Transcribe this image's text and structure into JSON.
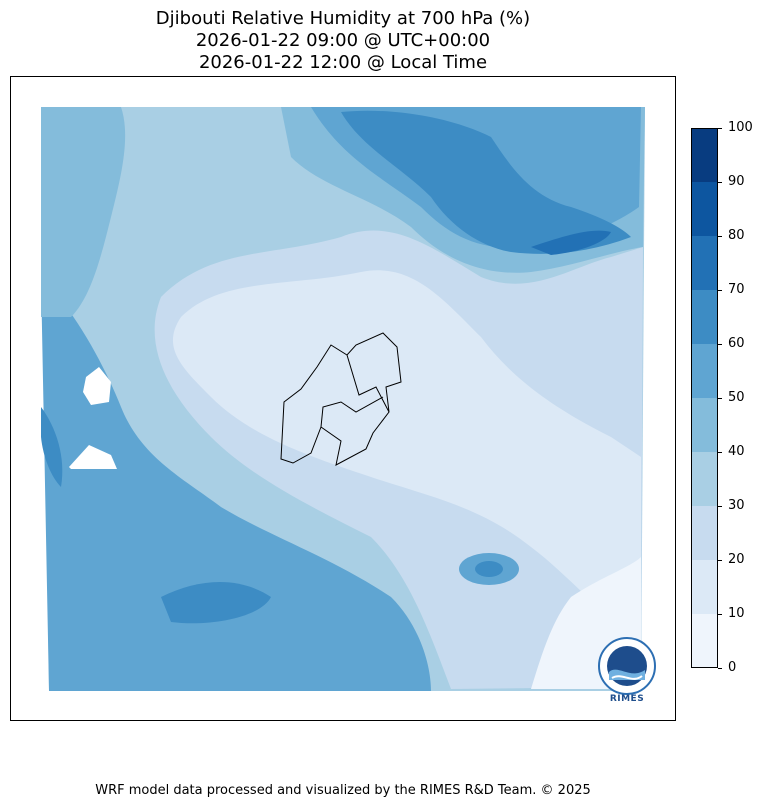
{
  "title": {
    "line1": "Djibouti Relative Humidity at 700 hPa (%)",
    "line2": "2026-01-22 09:00 @ UTC+00:00",
    "line3": "2026-01-22 12:00 @ Local Time"
  },
  "colorbar": {
    "ticks": [
      "0",
      "10",
      "20",
      "30",
      "40",
      "50",
      "60",
      "70",
      "80",
      "90",
      "100"
    ],
    "colors": [
      "#eff5fc",
      "#dce9f6",
      "#c7dbef",
      "#a9cfe4",
      "#84bcdb",
      "#5fa5d2",
      "#3d8cc4",
      "#2271b5",
      "#0d56a0",
      "#083c80"
    ]
  },
  "footer": "WRF model data processed and visualized by the RIMES R&D Team. © 2025",
  "logo": {
    "label": "RIMES",
    "icon": "rimes-logo-icon"
  }
}
